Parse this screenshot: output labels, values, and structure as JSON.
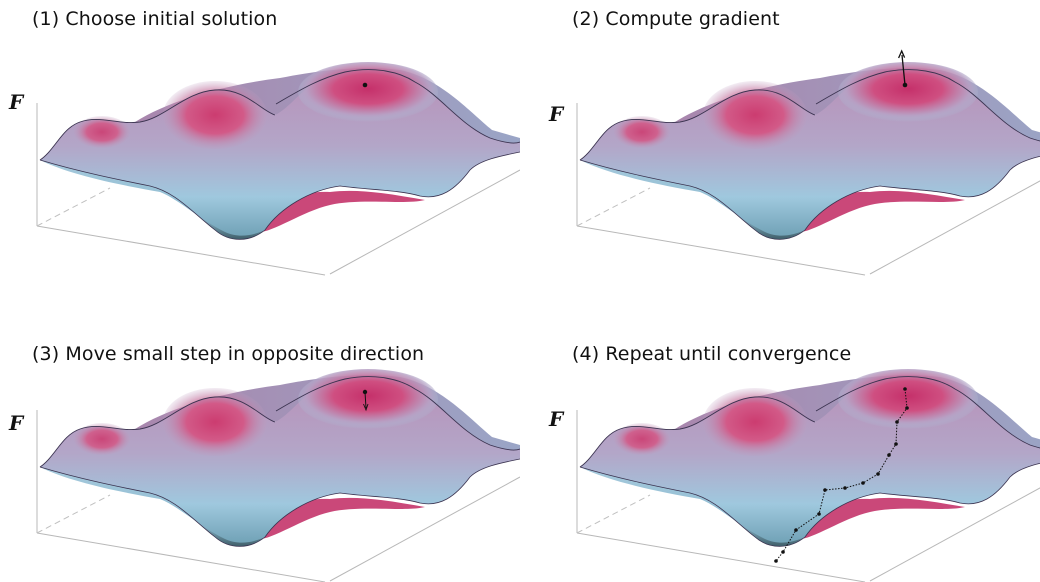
{
  "panels": [
    {
      "title": "(1) Choose initial solution",
      "axis_label": "F",
      "annotation": "point"
    },
    {
      "title": "(2) Compute gradient",
      "axis_label": "F",
      "annotation": "gradient"
    },
    {
      "title": "(3) Move small step in opposite direction",
      "axis_label": "F",
      "annotation": "step"
    },
    {
      "title": "(4) Repeat until convergence",
      "axis_label": "F",
      "annotation": "path"
    }
  ],
  "colors": {
    "peak": "#c8336a",
    "valley": "#8fc0d9",
    "axis": "#b8b8b8",
    "marker": "#111111"
  }
}
